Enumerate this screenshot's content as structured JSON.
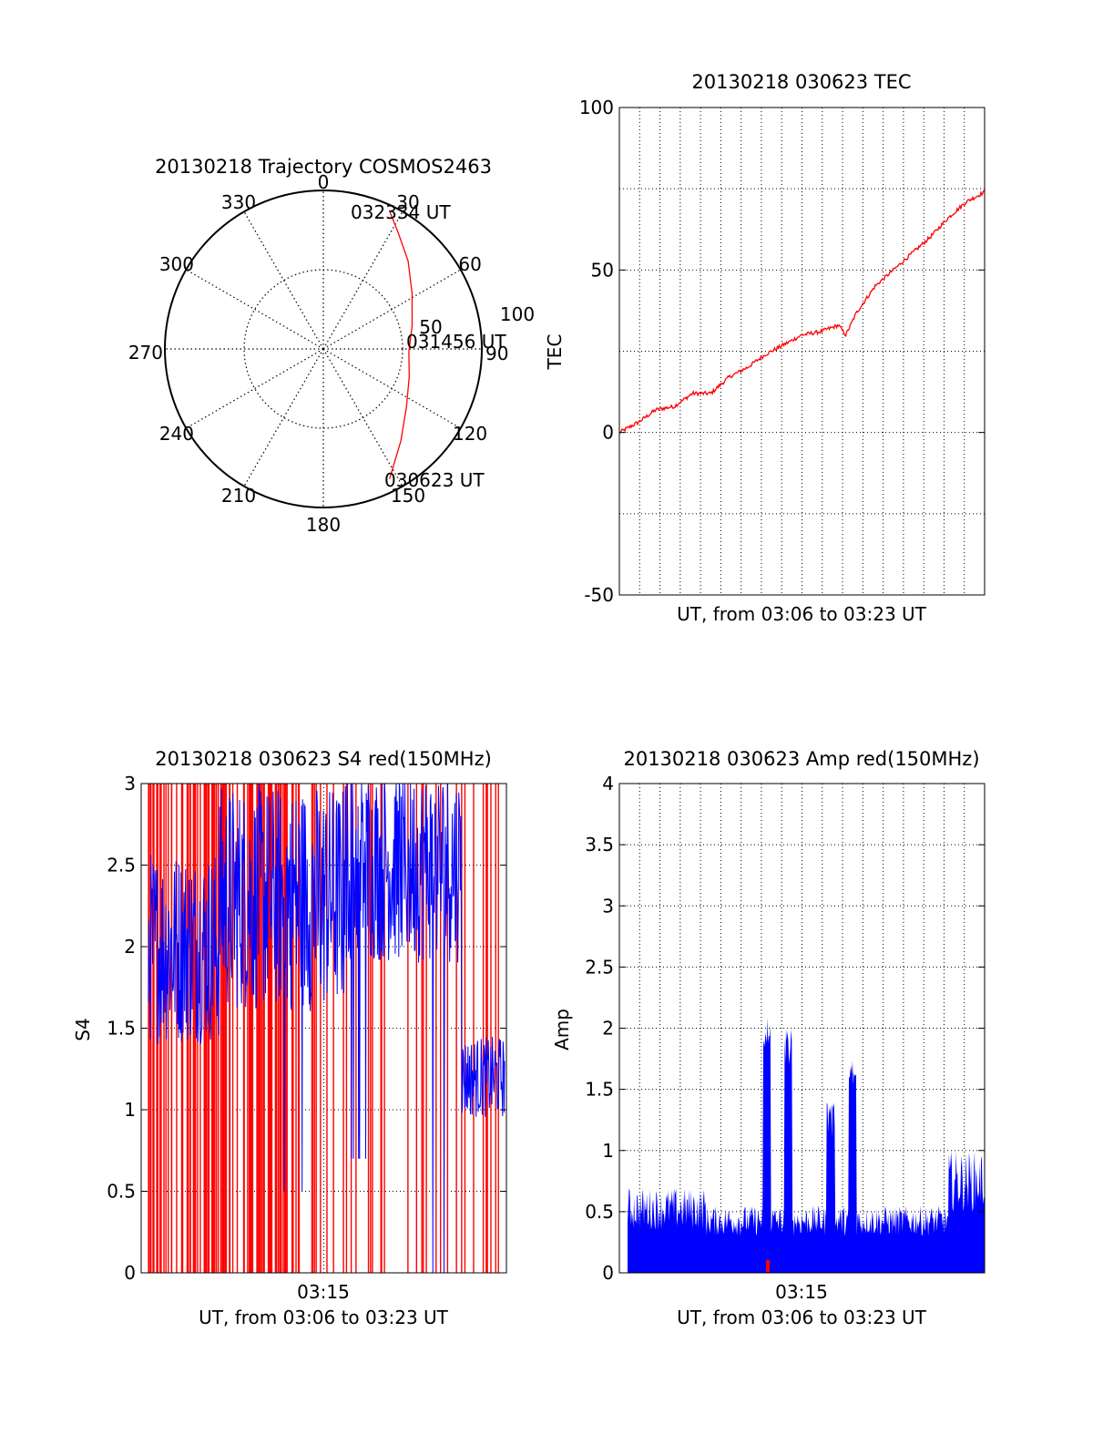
{
  "colors": {
    "tec": "#ff0000",
    "s4_red": "#ff0000",
    "s4_blue": "#0000ff",
    "amp_blue": "#0000ff",
    "amp_red": "#ff0000",
    "grid": "#000000"
  },
  "chart_data": [
    {
      "type": "polar",
      "title": "20130218 Trajectory COSMOS2463",
      "azimuth_labels": [
        "0",
        "30",
        "60",
        "90",
        "120",
        "150",
        "180",
        "210",
        "240",
        "270",
        "300",
        "330"
      ],
      "radius_labels": [
        "50",
        "100"
      ],
      "rmax": 100,
      "track_start_label": "030623 UT",
      "track_mid_label": "031456 UT",
      "track_end_label": "032334 UT",
      "track": [
        {
          "az": 153,
          "r": 92
        },
        {
          "az": 140,
          "r": 76
        },
        {
          "az": 125,
          "r": 64
        },
        {
          "az": 108,
          "r": 57
        },
        {
          "az": 92,
          "r": 54
        },
        {
          "az": 75,
          "r": 58
        },
        {
          "az": 58,
          "r": 66
        },
        {
          "az": 44,
          "r": 77
        },
        {
          "az": 33,
          "r": 87
        },
        {
          "az": 26,
          "r": 96
        }
      ]
    },
    {
      "type": "line",
      "title": "20130218 030623 TEC",
      "xlabel": "UT, from 03:06 to 03:23 UT",
      "ylabel": "TEC",
      "ylim": [
        -50,
        100
      ],
      "yticks": [
        "-50",
        "0",
        "50",
        "100"
      ],
      "grid": true,
      "series": [
        {
          "x": [
            0,
            0.05,
            0.1,
            0.15,
            0.2,
            0.25,
            0.3,
            0.35,
            0.4,
            0.45,
            0.5,
            0.55,
            0.6,
            0.62,
            0.65,
            0.7,
            0.75,
            0.8,
            0.85,
            0.9,
            0.95,
            1
          ],
          "y": [
            0,
            3,
            7,
            8,
            12,
            12,
            17,
            20,
            24,
            27,
            30,
            31,
            33,
            30,
            37,
            45,
            50,
            55,
            60,
            66,
            71,
            74
          ]
        }
      ]
    },
    {
      "type": "line",
      "title": "20130218 030623 S4 red(150MHz)",
      "xlabel": "UT, from 03:06 to 03:23 UT",
      "ylabel": "S4",
      "ylim": [
        0,
        3
      ],
      "yticks": [
        "0",
        "0.5",
        "1",
        "1.5",
        "2",
        "2.5",
        "3"
      ],
      "xtick": "03:15",
      "grid": true,
      "series": [
        {
          "name": "",
          "color": "red",
          "values": "spikes between 0 and 3"
        },
        {
          "name": "",
          "color": "blue",
          "values": "noisy band mostly between 1.5 and 3, dips near 0.5, tail near 1.2"
        }
      ]
    },
    {
      "type": "area",
      "title": "20130218 030623 Amp red(150MHz)",
      "xlabel": "UT, from 03:06 to 03:23 UT",
      "ylabel": "Amp",
      "ylim": [
        0,
        4
      ],
      "yticks": [
        "0",
        "0.5",
        "1",
        "1.5",
        "2",
        "2.5",
        "3",
        "3.5",
        "4"
      ],
      "xtick": "03:15",
      "grid": true,
      "peaks": [
        {
          "x": 0.39,
          "y": 2.1
        },
        {
          "x": 0.45,
          "y": 2.0
        },
        {
          "x": 0.57,
          "y": 1.4
        },
        {
          "x": 0.63,
          "y": 1.8
        }
      ]
    }
  ]
}
